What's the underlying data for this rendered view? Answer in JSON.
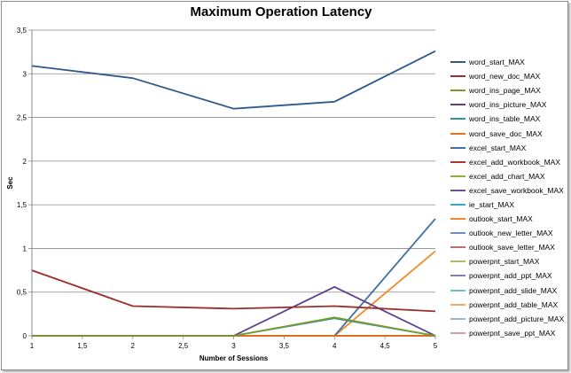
{
  "chart_data": {
    "type": "line",
    "title": "Maximum Operation Latency",
    "xlabel": "Number of Sessions",
    "ylabel": "Sec",
    "xlim": [
      1,
      5
    ],
    "ylim": [
      0,
      3.5
    ],
    "x_ticks": [
      "1",
      "1,5",
      "2",
      "2,5",
      "3",
      "3,5",
      "4",
      "4,5",
      "5"
    ],
    "y_ticks": [
      "0",
      "0,5",
      "1",
      "1,5",
      "2",
      "2,5",
      "3",
      "3,5"
    ],
    "grid": "horizontal",
    "legend_position": "right",
    "x": [
      1,
      2,
      3,
      4,
      5
    ],
    "series": [
      {
        "name": "word_start_MAX",
        "color": "#2e5a8c",
        "values": [
          3.09,
          2.95,
          2.6,
          2.68,
          3.26
        ]
      },
      {
        "name": "word_new_doc_MAX",
        "color": "#9b2d2a",
        "values": [
          0.75,
          0.34,
          0.31,
          0.34,
          0.28
        ]
      },
      {
        "name": "word_ins_page_MAX",
        "color": "#7c9a2e",
        "values": [
          0,
          0,
          0,
          0.21,
          0
        ]
      },
      {
        "name": "word_ins_picture_MAX",
        "color": "#5b3f8c",
        "values": [
          0,
          0,
          0,
          0.56,
          0
        ]
      },
      {
        "name": "word_ins_table_MAX",
        "color": "#2f93a8",
        "values": [
          0,
          0,
          0,
          0.2,
          0
        ]
      },
      {
        "name": "word_save_doc_MAX",
        "color": "#e0761c",
        "values": [
          0,
          0,
          0,
          0,
          0
        ]
      },
      {
        "name": "excel_start_MAX",
        "color": "#3f6fa8",
        "values": [
          null,
          null,
          null,
          0,
          1.34
        ]
      },
      {
        "name": "excel_add_workbook_MAX",
        "color": "#b03530",
        "values": [
          0,
          0,
          0,
          0,
          0
        ]
      },
      {
        "name": "excel_add_chart_MAX",
        "color": "#8fb03a",
        "values": [
          0,
          0,
          0,
          0,
          0
        ]
      },
      {
        "name": "excel_save_workbook_MAX",
        "color": "#6a4f9c",
        "values": [
          0,
          0,
          0,
          0,
          0
        ]
      },
      {
        "name": "ie_start_MAX",
        "color": "#3aa8c8",
        "values": [
          0,
          0,
          0,
          0,
          0
        ]
      },
      {
        "name": "outlook_start_MAX",
        "color": "#f08a2a",
        "values": [
          null,
          null,
          null,
          0,
          0.97
        ]
      },
      {
        "name": "outlook_new_letter_MAX",
        "color": "#6c8fc4",
        "values": [
          0,
          0,
          0,
          0,
          0
        ]
      },
      {
        "name": "outlook_save_letter_MAX",
        "color": "#c86a66",
        "values": [
          0,
          0,
          0,
          0,
          0
        ]
      },
      {
        "name": "powerpnt_start_MAX",
        "color": "#a8c060",
        "values": [
          0,
          0,
          0,
          0,
          0
        ]
      },
      {
        "name": "powerpnt_add_ppt_MAX",
        "color": "#8c7ab4",
        "values": [
          0,
          0,
          0,
          0,
          0
        ]
      },
      {
        "name": "powerpnt_add_slide_MAX",
        "color": "#6cc0d4",
        "values": [
          0,
          0,
          0,
          0,
          0
        ]
      },
      {
        "name": "powerpnt_add_table_MAX",
        "color": "#f4a864",
        "values": [
          0,
          0,
          0,
          0,
          0
        ]
      },
      {
        "name": "powerpnt_add_picture_MAX",
        "color": "#9cb4dc",
        "values": [
          0,
          0,
          0,
          0,
          0
        ]
      },
      {
        "name": "powerpnt_save_ppt_MAX",
        "color": "#dc9c9c",
        "values": [
          0,
          0,
          0,
          0,
          0
        ]
      }
    ]
  }
}
